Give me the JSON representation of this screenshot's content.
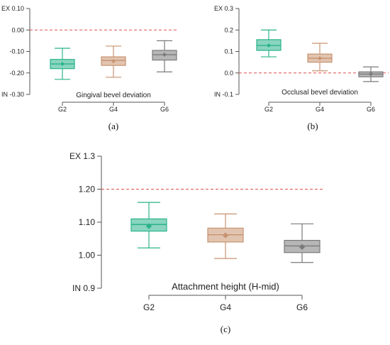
{
  "colors": {
    "G2": "#2bb38a",
    "G4": "#c89370",
    "G6": "#7a7a7a",
    "reference": "#e0504a",
    "axis": "#555555"
  },
  "chart_data": [
    {
      "type": "box",
      "panel_label": "(a)",
      "xlabel": "Gingival bevel deviation",
      "categories": [
        "G2",
        "G4",
        "G6"
      ],
      "ylim": [
        -0.3,
        0.1
      ],
      "yticks": [
        0.1,
        0.0,
        -0.1,
        -0.2,
        -0.3
      ],
      "ytick_labels": [
        "EX 0.10",
        "0.00",
        "-0.10",
        "-0.20",
        "IN -0.30"
      ],
      "reference_line": 0.0,
      "boxes": [
        {
          "category": "G2",
          "whisker_low": -0.23,
          "q1": -0.18,
          "median": -0.158,
          "q3": -0.137,
          "whisker_high": -0.085,
          "mean": -0.158
        },
        {
          "category": "G4",
          "whisker_low": -0.22,
          "q1": -0.165,
          "median": -0.142,
          "q3": -0.125,
          "whisker_high": -0.075,
          "mean": -0.145
        },
        {
          "category": "G6",
          "whisker_low": -0.195,
          "q1": -0.14,
          "median": -0.115,
          "q3": -0.095,
          "whisker_high": -0.05,
          "mean": -0.115
        }
      ]
    },
    {
      "type": "box",
      "panel_label": "(b)",
      "xlabel": "Occlusal bevel deviation",
      "categories": [
        "G2",
        "G4",
        "G6"
      ],
      "ylim": [
        -0.1,
        0.3
      ],
      "yticks": [
        0.3,
        0.2,
        0.1,
        0.0,
        -0.1
      ],
      "ytick_labels": [
        "EX 0.3",
        "0.2",
        "0.1",
        "0.0",
        "IN -0.1"
      ],
      "reference_line": 0.0,
      "boxes": [
        {
          "category": "G2",
          "whisker_low": 0.075,
          "q1": 0.105,
          "median": 0.128,
          "q3": 0.155,
          "whisker_high": 0.2,
          "mean": 0.128
        },
        {
          "category": "G4",
          "whisker_low": 0.01,
          "q1": 0.05,
          "median": 0.068,
          "q3": 0.088,
          "whisker_high": 0.138,
          "mean": 0.068
        },
        {
          "category": "G6",
          "whisker_low": -0.04,
          "q1": -0.018,
          "median": -0.005,
          "q3": 0.005,
          "whisker_high": 0.028,
          "mean": -0.005
        }
      ]
    },
    {
      "type": "box",
      "panel_label": "(c)",
      "xlabel": "Attachment height (H-mid)",
      "categories": [
        "G2",
        "G4",
        "G6"
      ],
      "ylim": [
        0.9,
        1.3
      ],
      "yticks": [
        1.3,
        1.2,
        1.1,
        1.0,
        0.9
      ],
      "ytick_labels": [
        "EX 1.3",
        "1.20",
        "1.10",
        "1.00",
        "IN 0.9"
      ],
      "reference_line": 1.2,
      "boxes": [
        {
          "category": "G2",
          "whisker_low": 1.022,
          "q1": 1.073,
          "median": 1.093,
          "q3": 1.11,
          "whisker_high": 1.16,
          "mean": 1.088
        },
        {
          "category": "G4",
          "whisker_low": 0.99,
          "q1": 1.04,
          "median": 1.062,
          "q3": 1.082,
          "whisker_high": 1.125,
          "mean": 1.06
        },
        {
          "category": "G6",
          "whisker_low": 0.978,
          "q1": 1.008,
          "median": 1.028,
          "q3": 1.045,
          "whisker_high": 1.095,
          "mean": 1.025
        }
      ]
    }
  ]
}
